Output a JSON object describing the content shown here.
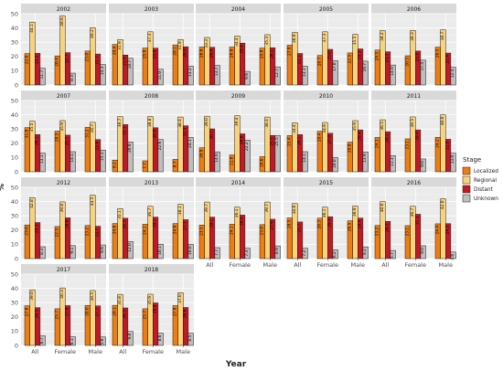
{
  "chart_data": {
    "type": "bar",
    "facet_by": "year",
    "panels": [
      "2002",
      "2003",
      "2004",
      "2005",
      "2006",
      "2007",
      "2008",
      "2009",
      "2010",
      "2011",
      "2012",
      "2013",
      "2014",
      "2015",
      "2016",
      "2017",
      "2018"
    ],
    "categories": [
      "All",
      "Female",
      "Male"
    ],
    "series_names": [
      "Localized",
      "Regional",
      "Distant",
      "Unknown"
    ],
    "colors": {
      "Localized": "#F07D10",
      "Regional": "#F9D37A",
      "Distant": "#C11A27",
      "Unknown": "#BEBEBE"
    },
    "label_color": "#000000",
    "ylim": [
      0,
      50
    ],
    "yticks": [
      0,
      10,
      20,
      30,
      40,
      50
    ],
    "xlabel": "Year",
    "ylabel": "%",
    "legend_title": "Stage",
    "legend_position": "right",
    "grid": true,
    "facet_ncol": 5,
    "x_labels_shown_on_panels": [
      "2014",
      "2015",
      "2016",
      "2017",
      "2018"
    ],
    "values": {
      "2002": [
        [
          22.0,
          44.1,
          22.2,
          11.7
        ],
        [
          20.4,
          48.6,
          22.7,
          8.3
        ],
        [
          23.8,
          40.2,
          21.7,
          14.3
        ]
      ],
      "2003": [
        [
          28.4,
          31.9,
          21.0,
          18.7
        ],
        [
          25.9,
          37.3,
          25.8,
          11.0
        ],
        [
          28.1,
          31.9,
          26.8,
          13.2
        ]
      ],
      "2004": [
        [
          26.6,
          33.3,
          26.4,
          13.7
        ],
        [
          26.6,
          34.4,
          29.4,
          9.6
        ],
        [
          25.9,
          35.3,
          26.1,
          12.7
        ]
      ],
      "2005": [
        [
          27.9,
          36.9,
          22.1,
          13.1
        ],
        [
          20.7,
          37.3,
          25.0,
          17.0
        ],
        [
          22.5,
          35.5,
          25.3,
          16.7
        ]
      ],
      "2006": [
        [
          24.5,
          38.2,
          23.3,
          14.0
        ],
        [
          20.5,
          38.3,
          23.8,
          17.4
        ],
        [
          26.5,
          38.7,
          22.4,
          12.4
        ]
      ],
      "2007": [
        [
          31.0,
          35.5,
          26.1,
          13.1
        ],
        [
          28.5,
          35.9,
          25.7,
          14.1
        ],
        [
          31.2,
          34.7,
          22.6,
          15.1
        ]
      ],
      "2008": [
        [
          8.2,
          38.7,
          33.1,
          20.9
        ],
        [
          7.7,
          38.8,
          30.9,
          22.6
        ],
        [
          8.7,
          38.4,
          32.3,
          24.1
        ]
      ],
      "2009": [
        [
          16.9,
          39.0,
          30.1,
          14.0
        ],
        [
          11.8,
          39.4,
          26.6,
          22.2
        ],
        [
          10.6,
          38.4,
          25.5,
          25.5
        ]
      ],
      "2010": [
        [
          25.4,
          34.4,
          26.1,
          14.1
        ],
        [
          28.4,
          34.6,
          27.0,
          10.0
        ],
        [
          20.8,
          35.9,
          29.4,
          13.9
        ]
      ],
      "2011": [
        [
          24.1,
          36.5,
          28.1,
          11.3
        ],
        [
          23.1,
          38.5,
          29.4,
          9.0
        ],
        [
          24.2,
          40.0,
          22.8,
          13.0
        ]
      ],
      "2012": [
        [
          23.6,
          42.8,
          25.3,
          8.3
        ],
        [
          22.5,
          39.8,
          28.6,
          9.1
        ],
        [
          23.2,
          44.5,
          22.7,
          9.6
        ]
      ],
      "2013": [
        [
          24.6,
          35.1,
          28.3,
          12.0
        ],
        [
          24.1,
          36.7,
          29.1,
          10.1
        ],
        [
          24.6,
          38.1,
          27.3,
          10.0
        ]
      ],
      "2014": [
        [
          23.5,
          39.7,
          29.1,
          7.7
        ],
        [
          24.1,
          36.1,
          30.5,
          7.3
        ],
        [
          23.8,
          39.7,
          27.6,
          8.9
        ]
      ],
      "2015": [
        [
          28.5,
          38.6,
          25.7,
          7.2
        ],
        [
          28.3,
          36.1,
          29.4,
          6.2
        ],
        [
          26.5,
          36.9,
          28.4,
          8.2
        ]
      ],
      "2016": [
        [
          23.2,
          40.0,
          26.1,
          5.7
        ],
        [
          23.1,
          36.7,
          31.1,
          9.0
        ],
        [
          24.4,
          42.0,
          24.5,
          4.6
        ]
      ],
      "2017": [
        [
          27.8,
          39.0,
          26.5,
          6.7
        ],
        [
          25.7,
          40.3,
          27.9,
          6.1
        ],
        [
          28.0,
          38.5,
          27.7,
          5.9
        ]
      ],
      "2018": [
        [
          28.1,
          35.8,
          26.3,
          9.8
        ],
        [
          25.7,
          35.9,
          29.8,
          8.6
        ],
        [
          27.9,
          37.0,
          26.6,
          8.5
        ]
      ]
    }
  }
}
